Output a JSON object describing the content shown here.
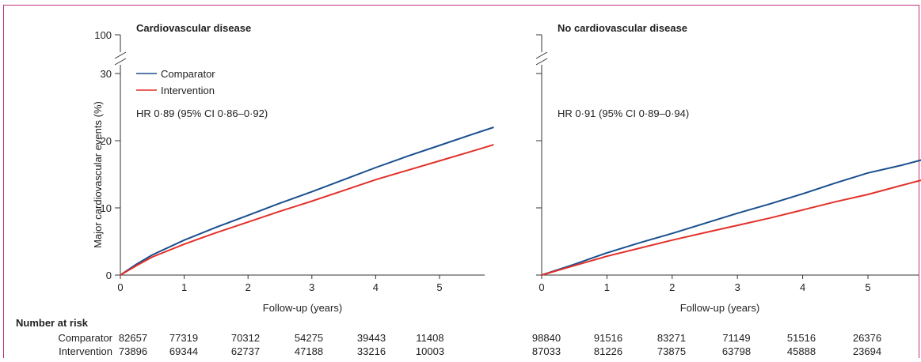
{
  "chart_data": [
    {
      "type": "line",
      "title": "Cardiovascular disease",
      "xlabel": "Follow-up (years)",
      "ylabel": "Major cardiovascular events (%)",
      "xlim": [
        0,
        5.85
      ],
      "ylim": [
        0,
        30
      ],
      "y_axis_break_top_tick": "100",
      "x_ticks": [
        "0",
        "1",
        "2",
        "3",
        "4",
        "5"
      ],
      "y_ticks": [
        "0",
        "10",
        "20",
        "30"
      ],
      "annotation": "HR 0·89 (95% CI 0·86–0·92)",
      "series": [
        {
          "name": "Comparator",
          "color": "#1a4f8e",
          "x": [
            0,
            0.25,
            0.5,
            1,
            1.5,
            2,
            2.5,
            3,
            3.5,
            4,
            4.5,
            5,
            5.5,
            5.85
          ],
          "y": [
            0,
            1.6,
            3.0,
            5.2,
            7.1,
            8.9,
            10.7,
            12.4,
            14.2,
            16.0,
            17.7,
            19.3,
            20.9,
            22.0
          ]
        },
        {
          "name": "Intervention",
          "color": "#e2312a",
          "x": [
            0,
            0.25,
            0.5,
            1,
            1.5,
            2,
            2.5,
            3,
            3.5,
            4,
            4.5,
            5,
            5.5,
            5.85
          ],
          "y": [
            0,
            1.4,
            2.7,
            4.6,
            6.3,
            7.9,
            9.5,
            11.0,
            12.6,
            14.2,
            15.6,
            17.0,
            18.4,
            19.4
          ]
        }
      ]
    },
    {
      "type": "line",
      "title": "No cardiovascular disease",
      "xlabel": "Follow-up (years)",
      "ylabel": "",
      "xlim": [
        0,
        5.85
      ],
      "ylim": [
        0,
        30
      ],
      "x_ticks": [
        "0",
        "1",
        "2",
        "3",
        "4",
        "5"
      ],
      "annotation": "HR 0·91 (95% CI 0·89–0·94)",
      "series": [
        {
          "name": "Comparator",
          "color": "#1a4f8e",
          "x": [
            0,
            0.5,
            1,
            1.5,
            2,
            2.5,
            3,
            3.5,
            4,
            4.5,
            5,
            5.5,
            5.85
          ],
          "y": [
            0,
            1.6,
            3.3,
            4.8,
            6.2,
            7.7,
            9.2,
            10.6,
            12.1,
            13.7,
            15.2,
            16.3,
            17.2
          ]
        },
        {
          "name": "Intervention",
          "color": "#e2312a",
          "x": [
            0,
            0.5,
            1,
            1.5,
            2,
            2.5,
            3,
            3.5,
            4,
            4.5,
            5,
            5.5,
            5.85
          ],
          "y": [
            0,
            1.4,
            2.8,
            4.0,
            5.2,
            6.3,
            7.4,
            8.5,
            9.7,
            10.9,
            12.0,
            13.3,
            14.2
          ]
        }
      ]
    }
  ],
  "risk_table": {
    "header": "Number at risk",
    "rows": [
      {
        "label": "Comparator",
        "left": [
          "82657",
          "77319",
          "70312",
          "54275",
          "39443",
          "11408"
        ],
        "right": [
          "98840",
          "91516",
          "83271",
          "71149",
          "51516",
          "26376"
        ]
      },
      {
        "label": "Intervention",
        "left": [
          "73896",
          "69344",
          "62737",
          "47188",
          "33216",
          "10003"
        ],
        "right": [
          "87033",
          "81226",
          "73875",
          "63798",
          "45888",
          "23694"
        ]
      }
    ]
  }
}
